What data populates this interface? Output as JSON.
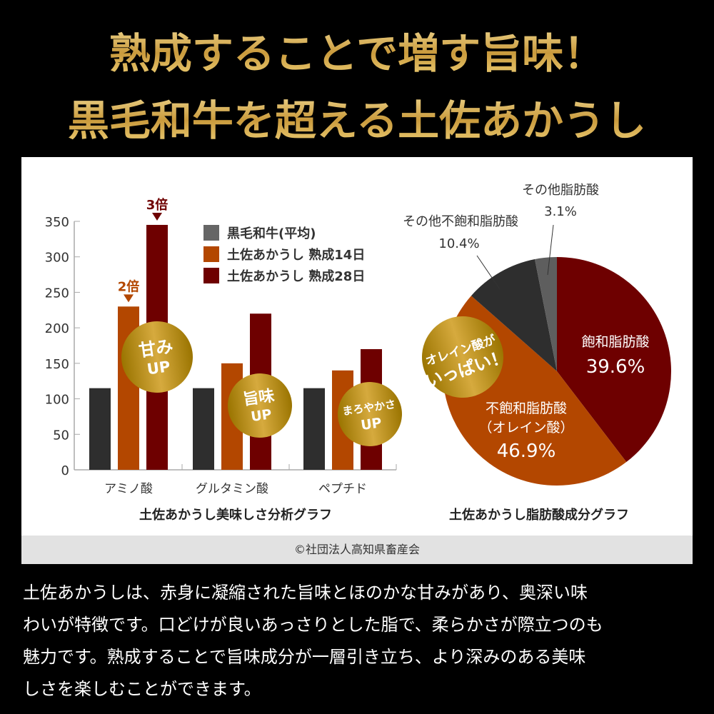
{
  "headline": {
    "line1": "熟成することで増す旨味！",
    "line2": "黒毛和牛を超える土佐あかうし"
  },
  "chart_data": [
    {
      "type": "bar",
      "title": "土佐あかうし美味しさ分析グラフ",
      "categories": [
        "アミノ酸",
        "グルタミン酸",
        "ペプチド"
      ],
      "ylim": [
        0,
        350
      ],
      "yticks": [
        0,
        50,
        100,
        150,
        200,
        250,
        300,
        350
      ],
      "legend": "top-right",
      "series": [
        {
          "name": "黒毛和牛(平均)",
          "color": "#2e2e2e",
          "values": [
            115,
            115,
            115
          ]
        },
        {
          "name": "土佐あかうし 熟成14日",
          "color": "#b34700",
          "values": [
            230,
            150,
            140
          ]
        },
        {
          "name": "土佐あかうし 熟成28日",
          "color": "#6e0000",
          "values": [
            345,
            220,
            170
          ]
        }
      ],
      "annotations": [
        {
          "text": "2倍",
          "color": "#b34700"
        },
        {
          "text": "3倍",
          "color": "#6e0000"
        }
      ],
      "badges": [
        {
          "line1": "甘み",
          "line2": "UP"
        },
        {
          "line1": "旨味",
          "line2": "UP"
        },
        {
          "line1": "まろやかさ",
          "line2": "UP"
        }
      ]
    },
    {
      "type": "pie",
      "title": "土佐あかうし脂肪酸成分グラフ",
      "slices": [
        {
          "label": "飽和脂肪酸",
          "value": 39.6,
          "display": "39.6%",
          "color": "#6e0000"
        },
        {
          "label": "不飽和脂肪酸",
          "sublabel": "（オレイン酸）",
          "value": 46.9,
          "display": "46.9%",
          "color": "#b34700"
        },
        {
          "label": "その他不飽和脂肪酸",
          "value": 10.4,
          "display": "10.4%",
          "color": "#2e2e2e"
        },
        {
          "label": "その他脂肪酸",
          "value": 3.1,
          "display": "3.1%",
          "color": "#5e5e5e"
        }
      ],
      "badge": {
        "line1": "オレイン酸が",
        "line2": "いっぱい！"
      }
    }
  ],
  "credit": "©社団法人高知県畜産会",
  "body": [
    "土佐あかうしは、赤身に凝縮された旨味とほのかな甘みがあり、奥深い味",
    "わいが特徴です。口どけが良いあっさりとした脂で、柔らかさが際立つのも",
    "魅力です。熟成することで旨味成分が一層引き立ち、より深みのある美味",
    "しさを楽しむことができます。"
  ]
}
